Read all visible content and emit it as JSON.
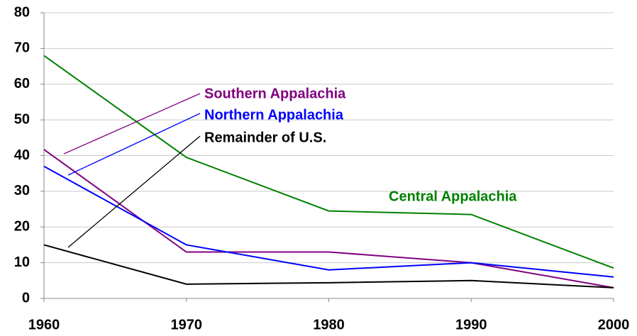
{
  "chart_data": {
    "type": "line",
    "x": [
      1960,
      1970,
      1980,
      1990,
      2000
    ],
    "series": [
      {
        "name": "Central Appalachia",
        "color": "#008000",
        "values": [
          68,
          39.5,
          24.5,
          23.5,
          8.5
        ]
      },
      {
        "name": "Southern Appalachia",
        "color": "#800080",
        "values": [
          41.7,
          13,
          13,
          10,
          3
        ]
      },
      {
        "name": "Northern Appalachia",
        "color": "#0000ff",
        "values": [
          37,
          15,
          8,
          10,
          6
        ]
      },
      {
        "name": "Remainder of U.S.",
        "color": "#000000",
        "values": [
          15,
          4,
          4.4,
          5,
          3
        ]
      }
    ],
    "xlim": [
      1960,
      2000
    ],
    "xticks": [
      1960,
      1970,
      1980,
      1990,
      2000
    ],
    "ylim": [
      0,
      80
    ],
    "yticks": [
      0,
      10,
      20,
      30,
      40,
      50,
      60,
      70,
      80
    ],
    "grid": true
  }
}
